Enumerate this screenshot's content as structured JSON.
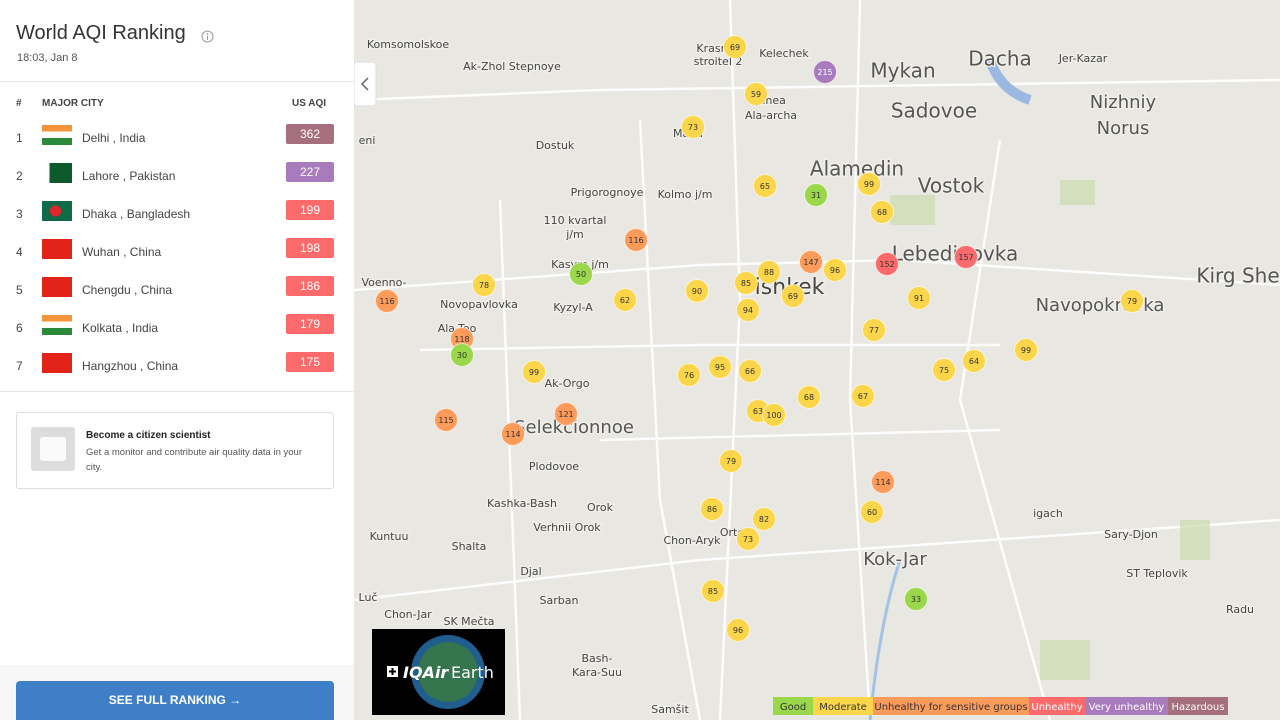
{
  "sidebar": {
    "title": "World AQI Ranking",
    "timestamp": "18:03, Jan 8",
    "table": {
      "headers": [
        "#",
        "MAJOR CITY",
        "US AQI"
      ],
      "rows": [
        [
          "1",
          "Delhi , India",
          "362"
        ],
        [
          "2",
          "Lahore , Pakistan",
          "227"
        ],
        [
          "3",
          "Dhaka , Bangladesh",
          "199"
        ],
        [
          "4",
          "Wuhan , China",
          "198"
        ],
        [
          "5",
          "Chengdu , China",
          "186"
        ],
        [
          "6",
          "Kolkata , India",
          "179"
        ],
        [
          "7",
          "Hangzhou , China",
          "175"
        ]
      ]
    },
    "card": {
      "title": "Become a citizen scientist",
      "text": "Get a monitor and contribute air quality data in your city."
    },
    "button": "SEE FULL RANKING →"
  },
  "map": {
    "places": [
      "Komsomolskoe",
      "Ak-Zhol Stepnoye",
      "Krasn",
      "stroitel 2",
      "Kelechek",
      "Mykan",
      "Dacha",
      "Jer-Kazar",
      "Sadovoe",
      "Nizhniy",
      "Norus",
      "Jilnea",
      "Ala-archa",
      "Mada",
      "Dostuk",
      "Alamedin",
      "Vostok",
      "Prigorognoye",
      "Kolmo j/m",
      "110 kvartal",
      "j/m",
      "Lebedinovka",
      "Kasym j/m",
      "Voenno-",
      "Novopavlovka",
      "Kyzyl-A",
      "Bishkek",
      "Kirg She",
      "Navopokrovka",
      "Ala-Too",
      "Ak-Orgo",
      "Selekcionnoe",
      "Plodovoe",
      "Kashka-Bash",
      "Orok",
      "Verhnii Orok",
      "Kuntuu",
      "Shalta",
      "Chon-Aryk",
      "Orto",
      "igach",
      "Sary-Djon",
      "Kok-Jar",
      "Djal",
      "ST Teplovik",
      "Sarban",
      "Chon-Jar",
      "SK Mečta",
      "Radu",
      "Bash-",
      "Kara-Suu",
      "Samšit",
      "eni",
      "Luč"
    ],
    "markers": [
      69,
      215,
      59,
      73,
      65,
      31,
      99,
      68,
      116,
      147,
      152,
      157,
      96,
      88,
      85,
      69,
      90,
      78,
      50,
      62,
      116,
      91,
      79,
      94,
      77,
      118,
      30,
      99,
      64,
      75,
      99,
      76,
      95,
      66,
      68,
      67,
      63,
      100,
      121,
      115,
      114,
      79,
      114,
      86,
      82,
      60,
      73,
      85,
      33,
      96
    ],
    "logo": {
      "brand": "IQAir",
      "product": "Earth"
    },
    "legend": [
      {
        "label": "Good",
        "color": "#9bd74b"
      },
      {
        "label": "Moderate",
        "color": "#fcd64a"
      },
      {
        "label": "Unhealthy for sensitive groups",
        "color": "#fd9b5a"
      },
      {
        "label": "Unhealthy",
        "color": "#fd6a6b"
      },
      {
        "label": "Very unhealthy",
        "color": "#a87bbd"
      },
      {
        "label": "Hazardous",
        "color": "#a66f7f"
      }
    ]
  }
}
